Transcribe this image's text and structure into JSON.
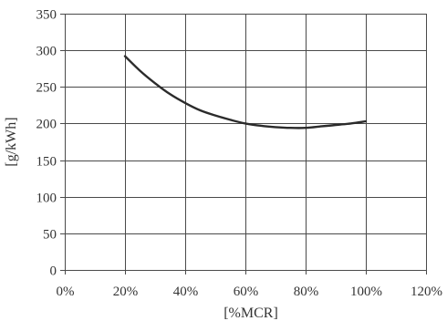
{
  "chart_data": {
    "type": "line",
    "title": "",
    "xlabel": "[%MCR]",
    "ylabel": "[g/kWh]",
    "xlim": [
      0,
      120
    ],
    "ylim": [
      0,
      350
    ],
    "xticks": [
      0,
      20,
      40,
      60,
      80,
      100,
      120
    ],
    "xtick_labels": [
      "0%",
      "20%",
      "40%",
      "60%",
      "80%",
      "100%",
      "120%"
    ],
    "yticks": [
      0,
      50,
      100,
      150,
      200,
      250,
      300,
      350
    ],
    "ytick_labels": [
      "0",
      "50",
      "100",
      "150",
      "200",
      "250",
      "300",
      "350"
    ],
    "grid": true,
    "legend": "none",
    "series": [
      {
        "x": [
          20,
          25,
          30,
          35,
          40,
          45,
          50,
          55,
          60,
          65,
          70,
          75,
          80,
          85,
          90,
          95,
          100
        ],
        "y": [
          292,
          272,
          255,
          240,
          228,
          218,
          211,
          205,
          200,
          197,
          195,
          194,
          194,
          196,
          198,
          200,
          203
        ],
        "color": "#2b2b2b"
      }
    ]
  }
}
